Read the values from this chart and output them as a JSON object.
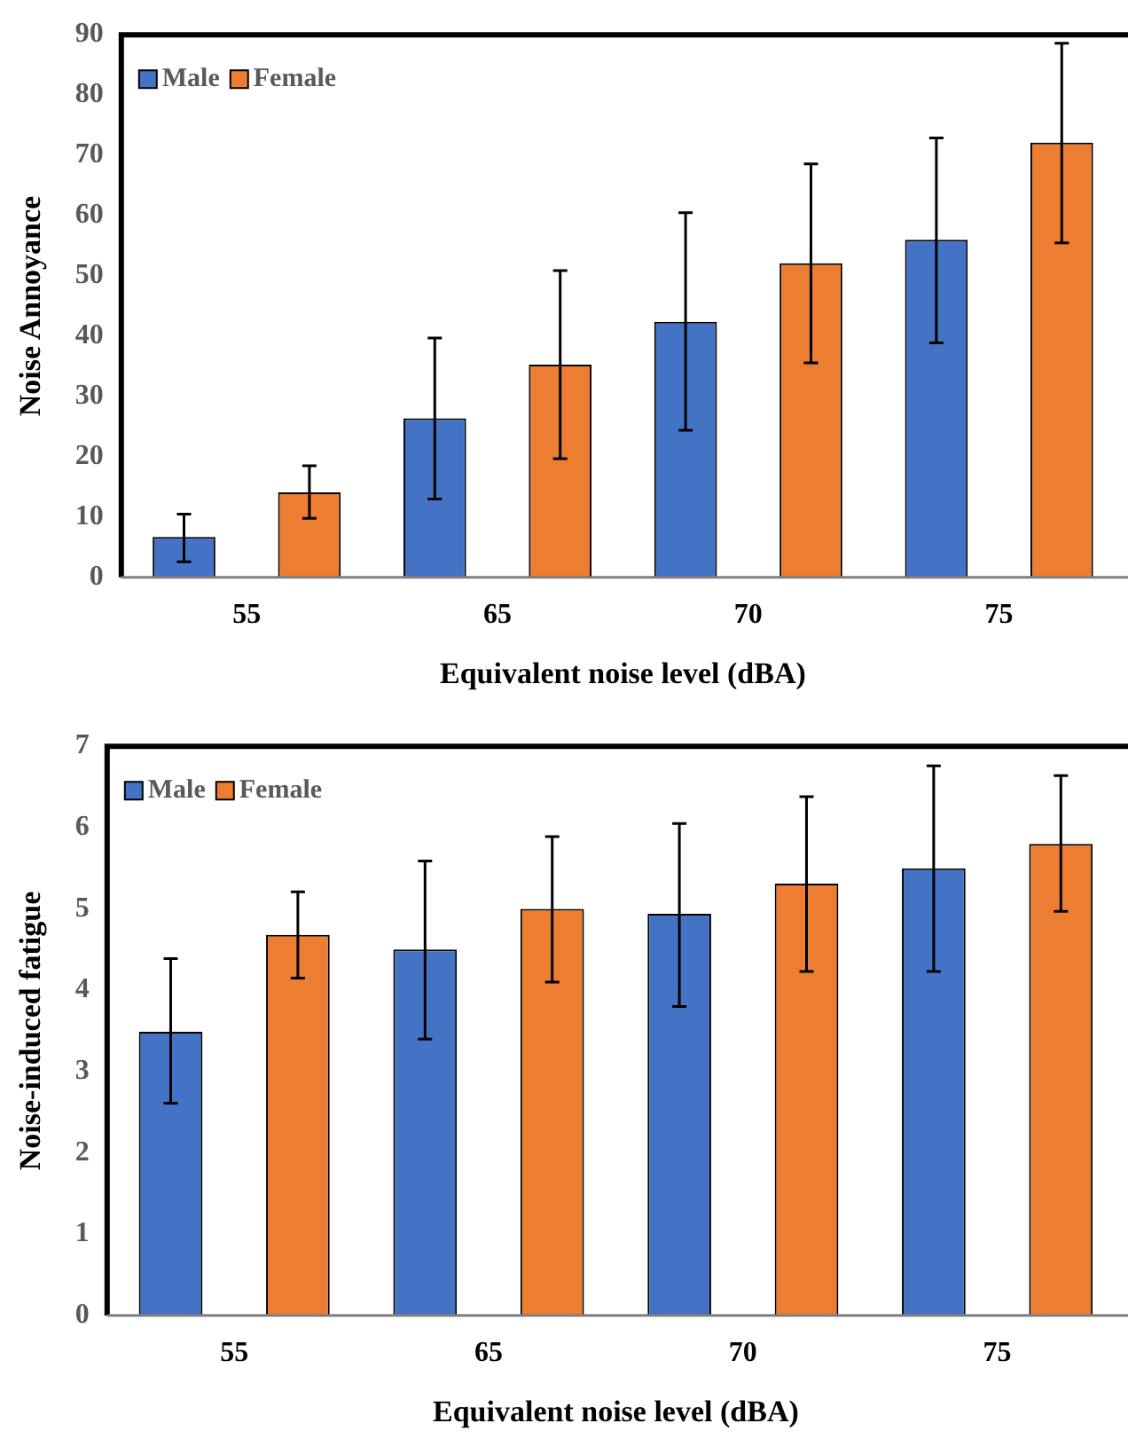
{
  "chart_data": [
    {
      "type": "bar",
      "xlabel": "Equivalent noise level (dBA)",
      "ylabel": "Noise Annoyance",
      "categories": [
        "55",
        "65",
        "70",
        "75"
      ],
      "ylim": [
        0,
        90
      ],
      "yticks": [
        0,
        10,
        20,
        30,
        40,
        50,
        60,
        70,
        80,
        90
      ],
      "grid": false,
      "legend": "top left",
      "series": [
        {
          "name": "Male",
          "color": "#4472c4",
          "values": [
            6.7,
            26.4,
            42.4,
            56
          ],
          "errors": [
            [
              2.6,
              10.5
            ],
            [
              13,
              39.7
            ],
            [
              24.4,
              60.5
            ],
            [
              38.9,
              72.9
            ]
          ]
        },
        {
          "name": "Female",
          "color": "#ed7d31",
          "values": [
            14.1,
            35.3,
            52.1,
            72.1
          ],
          "errors": [
            [
              9.8,
              18.5
            ],
            [
              19.7,
              50.9
            ],
            [
              35.6,
              68.6
            ],
            [
              55.5,
              88.6
            ]
          ]
        }
      ]
    },
    {
      "type": "bar",
      "xlabel": "Equivalent noise level (dBA)",
      "ylabel": "Noise-induced fatigue",
      "categories": [
        "55",
        "65",
        "70",
        "75"
      ],
      "ylim": [
        0,
        7
      ],
      "yticks": [
        0,
        1,
        2,
        3,
        4,
        5,
        6,
        7
      ],
      "grid": false,
      "legend": "top left",
      "series": [
        {
          "name": "Male",
          "color": "#4472c4",
          "values": [
            3.49,
            4.5,
            4.94,
            5.5
          ],
          "errors": [
            [
              2.61,
              4.39
            ],
            [
              3.4,
              5.59
            ],
            [
              3.8,
              6.05
            ],
            [
              4.23,
              6.76
            ]
          ]
        },
        {
          "name": "Female",
          "color": "#ed7d31",
          "values": [
            4.68,
            5.0,
            5.31,
            5.8
          ],
          "errors": [
            [
              4.15,
              5.21
            ],
            [
              4.1,
              5.89
            ],
            [
              4.23,
              6.38
            ],
            [
              4.97,
              6.64
            ]
          ]
        }
      ]
    }
  ]
}
